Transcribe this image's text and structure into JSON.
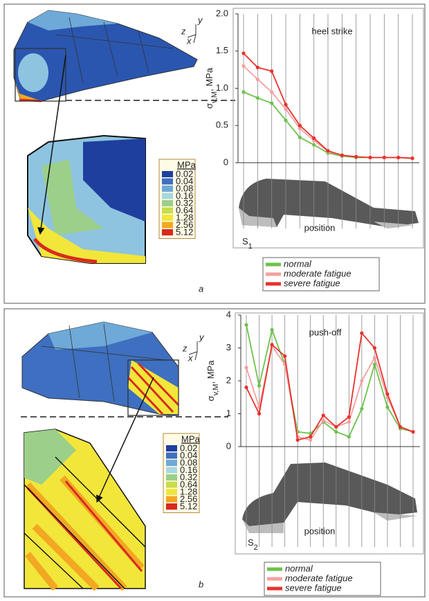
{
  "chart_data": [
    {
      "type": "line",
      "annotation": "heel strike",
      "x_annotation": "position",
      "sensor": [
        "S",
        "1"
      ],
      "y_label": [
        "σ",
        "v,M",
        ", MPa"
      ],
      "categories": [
        null,
        null,
        null,
        null,
        null,
        null,
        null,
        null,
        null,
        null,
        null,
        null,
        null
      ],
      "ylim": [
        0,
        2.0
      ],
      "yticks": [
        0,
        0.5,
        {
          "value": 1.0,
          "label": "1.0"
        },
        1.5,
        {
          "value": 2.0,
          "label": "2.0"
        }
      ],
      "series": [
        {
          "name": "normal",
          "color": "#6cc24a",
          "values": [
            0.95,
            0.87,
            0.8,
            0.57,
            0.34,
            0.24,
            0.13,
            0.09,
            0.07,
            0.07,
            0.07,
            0.07,
            0.06
          ]
        },
        {
          "name": "moderate fatigue",
          "color": "#f4a0a0",
          "values": [
            1.3,
            1.12,
            0.95,
            0.72,
            0.46,
            0.3,
            0.15,
            0.1,
            0.08,
            0.07,
            0.07,
            0.07,
            0.06
          ]
        },
        {
          "name": "severe fatigue",
          "color": "#e8322e",
          "values": [
            1.47,
            1.28,
            1.23,
            0.78,
            0.5,
            0.33,
            0.16,
            0.1,
            0.08,
            0.07,
            0.07,
            0.07,
            0.06
          ]
        }
      ]
    },
    {
      "type": "line",
      "annotation": "push-off",
      "x_annotation": "position",
      "sensor": [
        "S",
        "2"
      ],
      "y_label": [
        "σ",
        "v,M",
        ", MPa"
      ],
      "categories": [
        null,
        null,
        null,
        null,
        null,
        null,
        null,
        null,
        null,
        null,
        null,
        null,
        null,
        null
      ],
      "ylim": [
        0,
        4
      ],
      "yticks": [
        0,
        1,
        2,
        3,
        4
      ],
      "series": [
        {
          "name": "normal",
          "color": "#6cc24a",
          "values": [
            3.7,
            1.85,
            3.55,
            2.5,
            0.45,
            0.4,
            0.75,
            0.45,
            0.3,
            1.15,
            2.5,
            1.2,
            0.55,
            0.45
          ]
        },
        {
          "name": "moderate fatigue",
          "color": "#f4a0a0",
          "values": [
            2.4,
            1.2,
            3.05,
            2.5,
            0.3,
            0.2,
            0.8,
            0.6,
            0.75,
            2.0,
            2.7,
            1.5,
            0.6,
            0.45
          ]
        },
        {
          "name": "severe fatigue",
          "color": "#e8322e",
          "values": [
            1.8,
            1.0,
            3.1,
            2.75,
            0.2,
            0.3,
            0.95,
            0.6,
            0.9,
            3.45,
            3.0,
            1.6,
            0.6,
            0.45
          ]
        }
      ]
    }
  ],
  "panels": [
    {
      "label": "a",
      "axes": [
        "y",
        "z",
        "x"
      ],
      "colorbar": {
        "title": "MPa",
        "levels": [
          0.02,
          0.04,
          0.08,
          0.16,
          0.32,
          0.64,
          1.28,
          2.56,
          5.12
        ],
        "colors": [
          "#1f3f9e",
          "#3e6fc0",
          "#6ea9d8",
          "#a8d8e0",
          "#9ccf8a",
          "#c9dc4a",
          "#f2e63a",
          "#f2a822",
          "#d92a1e"
        ]
      }
    },
    {
      "label": "b",
      "axes": [
        "y",
        "z",
        "x"
      ],
      "colorbar": {
        "title": "MPa",
        "levels": [
          0.02,
          0.04,
          0.08,
          0.16,
          0.32,
          0.64,
          1.28,
          2.56,
          5.12
        ],
        "colors": [
          "#1f3f9e",
          "#3e6fc0",
          "#6ea9d8",
          "#a8d8e0",
          "#9ccf8a",
          "#c9dc4a",
          "#f2e63a",
          "#f2a822",
          "#d92a1e"
        ]
      }
    }
  ]
}
